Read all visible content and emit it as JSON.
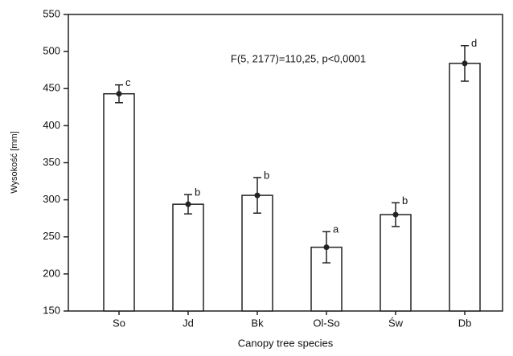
{
  "chart_data": {
    "type": "bar",
    "annotation": "F(5, 2177)=110,25, p<0,0001",
    "xlabel": "Canopy tree species",
    "ylabel": "Wysokość [mm]",
    "categories": [
      "So",
      "Jd",
      "Bk",
      "Ol-So",
      "Św",
      "Db"
    ],
    "values": [
      443,
      294,
      306,
      236,
      280,
      484
    ],
    "errors": [
      12,
      13,
      24,
      21,
      16,
      24
    ],
    "group_letters": [
      "c",
      "b",
      "b",
      "a",
      "b",
      "d"
    ],
    "color": "#ffffff",
    "ylim": [
      150,
      550
    ],
    "yticks": [
      150,
      200,
      250,
      300,
      350,
      400,
      450,
      500,
      550
    ]
  }
}
